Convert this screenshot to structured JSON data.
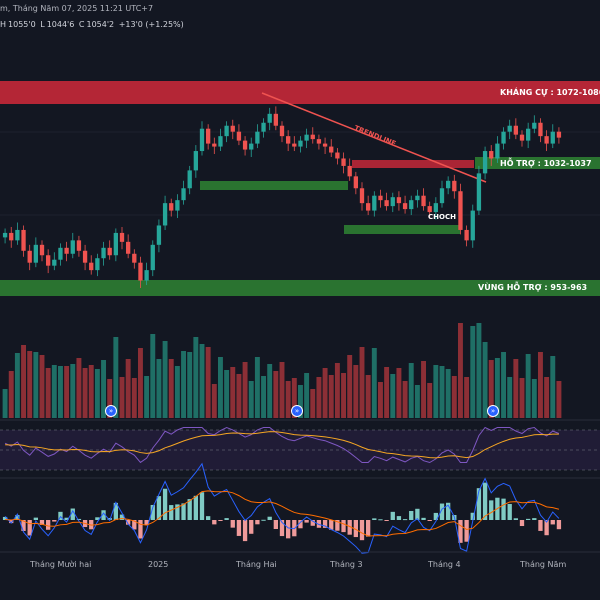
{
  "header": {
    "title": "m, Tháng Năm 07, 2025 11:21 UTC+7",
    "ohlc": [
      {
        "label": "H",
        "value": "1055'0"
      },
      {
        "label": "L",
        "value": "1044'6"
      },
      {
        "label": "C",
        "value": "1054'2"
      }
    ],
    "change": "+13'0 (+1.25%)"
  },
  "annotations": {
    "resistance": "KHÁNG CỰ : 1072-1086",
    "support_mid": "HỖ TRỢ : 1032-1037",
    "support_low": "VÙNG HỖ TRỢ : 953-963",
    "trendline": "TRENDLINE",
    "choch": "CHOCH"
  },
  "x_axis": {
    "labels": [
      "Tháng Mười hai",
      "2025",
      "Tháng Hai",
      "Tháng 3",
      "Tháng 4",
      "Tháng Năm"
    ]
  },
  "badge_icon": "double-chevron-right-icon",
  "colors": {
    "background": "#131722",
    "up": "#26a69a",
    "down": "#ef5350",
    "resistance_zone": "#c62838",
    "support_zone": "#2e7d32",
    "rsi_line": "#7e57c2",
    "rsi_ma": "#f5a623",
    "macd_line": "#2962ff",
    "signal_line": "#ff6d00"
  },
  "chart_data": {
    "type": "candlestick",
    "price_closes": [
      990,
      985,
      992,
      978,
      970,
      982,
      975,
      968,
      972,
      980,
      976,
      985,
      978,
      970,
      965,
      973,
      980,
      975,
      990,
      984,
      976,
      970,
      958,
      965,
      982,
      995,
      1010,
      1005,
      1012,
      1020,
      1032,
      1045,
      1060,
      1050,
      1048,
      1055,
      1062,
      1058,
      1052,
      1046,
      1050,
      1058,
      1064,
      1070,
      1062,
      1055,
      1050,
      1048,
      1052,
      1056,
      1053,
      1050,
      1048,
      1044,
      1040,
      1035,
      1028,
      1020,
      1010,
      1005,
      1015,
      1012,
      1008,
      1014,
      1010,
      1006,
      1012,
      1015,
      1008,
      1004,
      1010,
      1020,
      1025,
      1018,
      992,
      985,
      1005,
      1030,
      1045,
      1040,
      1050,
      1058,
      1062,
      1056,
      1052,
      1060,
      1064,
      1055,
      1050,
      1058,
      1054
    ]
  }
}
